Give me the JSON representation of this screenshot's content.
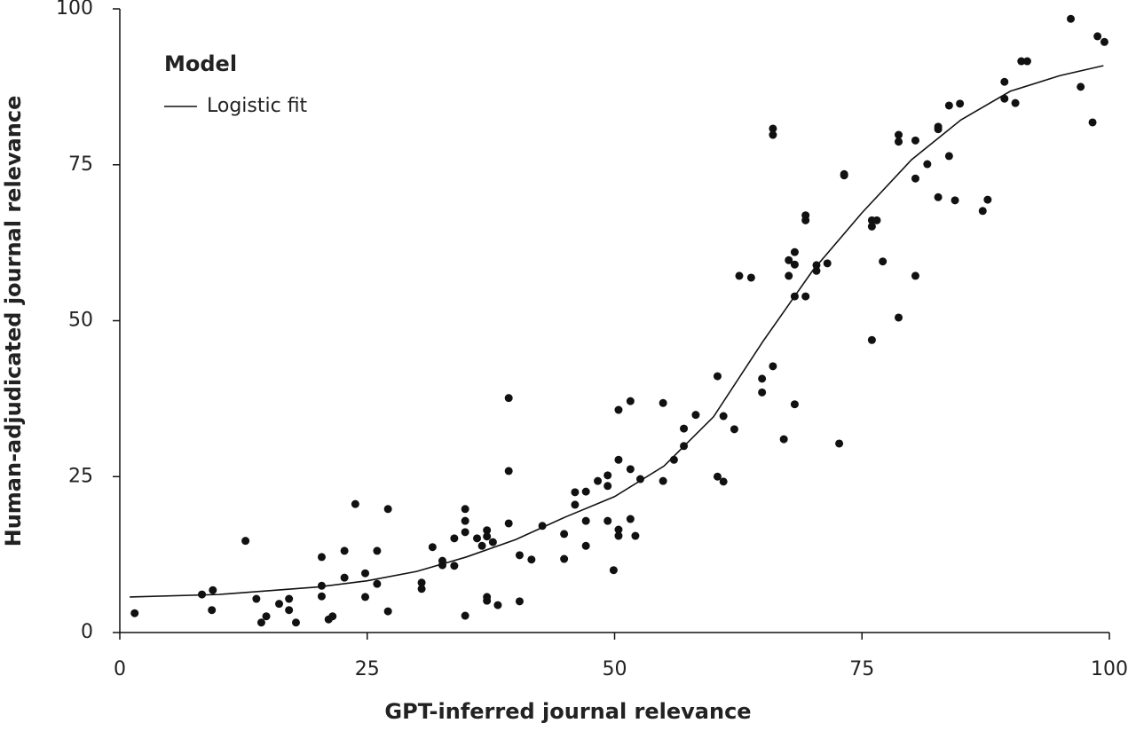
{
  "chart_data": {
    "type": "scatter",
    "xlabel": "GPT-inferred journal relevance",
    "ylabel": "Human-adjudicated journal relevance",
    "xlim": [
      0,
      100
    ],
    "ylim": [
      0,
      100
    ],
    "xticks": [
      0,
      25,
      50,
      75,
      100
    ],
    "yticks": [
      0,
      25,
      50,
      75,
      100
    ],
    "legend_title": "Model",
    "points": {
      "color": "#111111",
      "x": [
        1.5,
        8.3,
        9.4,
        9.3,
        12.7,
        13.8,
        14.3,
        14.8,
        16.1,
        17.1,
        17.1,
        17.8,
        20.4,
        20.4,
        20.4,
        21.1,
        21.5,
        22.7,
        22.7,
        23.8,
        24.8,
        24.8,
        26.0,
        26.0,
        27.1,
        27.1,
        30.5,
        30.5,
        31.6,
        32.6,
        32.6,
        33.8,
        33.8,
        34.9,
        34.9,
        34.9,
        34.9,
        36.1,
        36.6,
        37.1,
        37.1,
        37.1,
        37.1,
        37.7,
        38.2,
        39.3,
        39.3,
        39.3,
        40.4,
        40.4,
        41.6,
        42.7,
        44.9,
        44.9,
        46.0,
        46.0,
        47.1,
        47.1,
        47.1,
        48.3,
        49.3,
        49.3,
        49.3,
        49.9,
        50.4,
        50.4,
        50.4,
        50.4,
        51.6,
        51.6,
        51.6,
        52.1,
        52.6,
        54.9,
        54.9,
        56.0,
        57.0,
        57.0,
        58.2,
        60.4,
        60.4,
        61.0,
        61.0,
        62.1,
        62.6,
        63.8,
        64.9,
        64.9,
        66.0,
        66.0,
        66.0,
        67.1,
        67.6,
        67.6,
        68.2,
        68.2,
        68.2,
        68.2,
        69.3,
        69.3,
        69.3,
        70.4,
        70.4,
        71.5,
        72.7,
        73.2,
        73.2,
        76.0,
        76.0,
        76.0,
        76.5,
        77.1,
        78.7,
        78.7,
        78.7,
        80.4,
        80.4,
        80.4,
        81.6,
        82.7,
        82.7,
        82.7,
        83.8,
        83.8,
        84.4,
        84.9,
        87.2,
        87.7,
        89.4,
        89.4,
        90.5,
        91.1,
        91.7,
        96.1,
        97.1,
        98.3,
        98.8,
        99.5
      ],
      "values": [
        3.1,
        6.1,
        6.8,
        3.6,
        14.7,
        5.4,
        1.6,
        2.6,
        4.6,
        5.4,
        3.6,
        1.6,
        12.1,
        7.5,
        5.8,
        2.1,
        2.6,
        13.1,
        8.8,
        20.6,
        9.5,
        5.7,
        13.1,
        7.8,
        19.8,
        3.4,
        8.0,
        7.0,
        13.7,
        11.5,
        10.8,
        10.7,
        15.1,
        19.8,
        17.9,
        16.1,
        2.7,
        15.1,
        13.9,
        16.4,
        15.4,
        5.7,
        5.1,
        14.5,
        4.4,
        37.6,
        25.9,
        17.5,
        5.0,
        12.4,
        11.7,
        17.1,
        15.8,
        11.8,
        22.5,
        20.5,
        22.6,
        17.9,
        13.9,
        24.3,
        25.2,
        23.5,
        17.9,
        10.0,
        35.7,
        27.7,
        16.5,
        15.5,
        37.1,
        26.2,
        18.2,
        15.5,
        24.6,
        36.8,
        24.3,
        27.7,
        32.7,
        29.9,
        34.9,
        41.1,
        25.0,
        24.2,
        34.7,
        32.6,
        57.2,
        56.9,
        40.7,
        38.5,
        42.7,
        80.8,
        79.8,
        31.0,
        59.7,
        57.2,
        61.0,
        59.0,
        53.9,
        36.6,
        66.9,
        66.1,
        53.9,
        58.9,
        58.0,
        59.2,
        30.3,
        73.5,
        73.3,
        46.9,
        65.1,
        66.1,
        66.1,
        59.5,
        79.8,
        78.7,
        50.5,
        78.9,
        72.8,
        57.2,
        75.1,
        81.1,
        80.7,
        69.8,
        84.5,
        76.4,
        69.3,
        84.8,
        67.6,
        69.4,
        88.3,
        85.6,
        84.9,
        91.6,
        91.6,
        98.4,
        87.5,
        81.8,
        95.6,
        94.7
      ]
    },
    "series": [
      {
        "name": "Logistic fit",
        "color": "#111111",
        "x": [
          1,
          10,
          20,
          25,
          30,
          35,
          40,
          45,
          50,
          55,
          60,
          65,
          70,
          75,
          80,
          85,
          90,
          95,
          99.4
        ],
        "values": [
          5.7,
          6.1,
          7.3,
          8.3,
          9.8,
          12.1,
          14.9,
          18.5,
          21.8,
          26.7,
          34.6,
          46.7,
          58,
          67.3,
          75.8,
          82.2,
          86.8,
          89.3,
          90.9
        ]
      }
    ]
  }
}
